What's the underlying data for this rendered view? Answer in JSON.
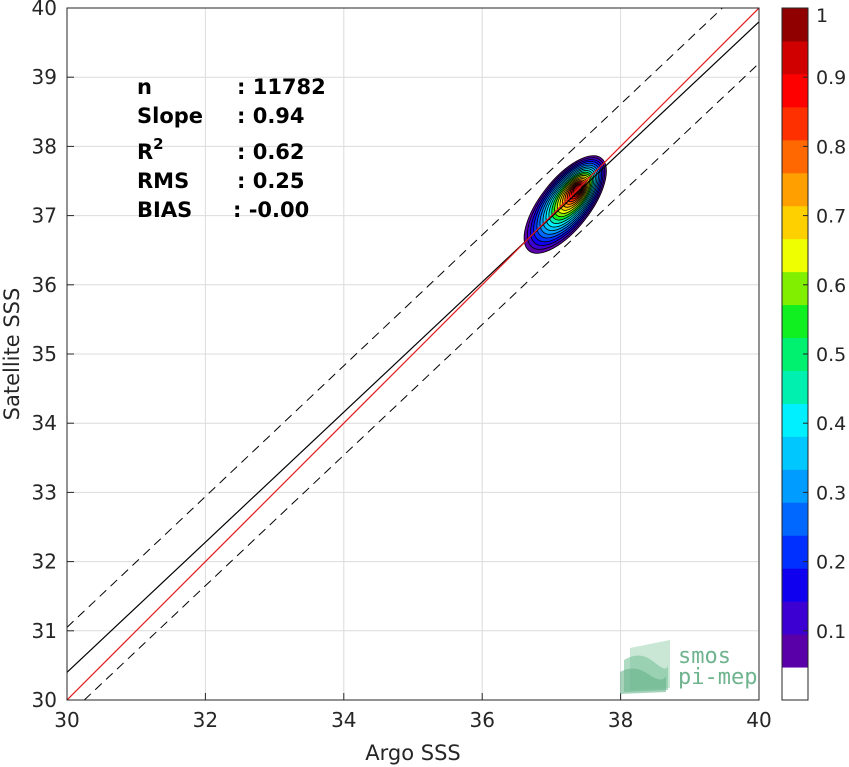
{
  "chart_data": {
    "type": "scatter",
    "subtype": "density-contour",
    "xlabel": "Argo SSS",
    "ylabel": "Satellite SSS",
    "xlim": [
      30,
      40
    ],
    "ylim": [
      30,
      40
    ],
    "xticks": [
      "30",
      "32",
      "34",
      "36",
      "38",
      "40"
    ],
    "yticks": [
      "30",
      "31",
      "32",
      "33",
      "34",
      "35",
      "36",
      "37",
      "38",
      "39",
      "40"
    ],
    "grid": true,
    "stats": [
      {
        "label": "n",
        "value": ": 11782"
      },
      {
        "label": "Slope",
        "value": ": 0.94"
      },
      {
        "label": "R",
        "sup": "2",
        "value": ": 0.62"
      },
      {
        "label": "RMS",
        "value": ": 0.25"
      },
      {
        "label": "BIAS",
        "value": ": -0.00"
      }
    ],
    "lines": {
      "identity": {
        "color": "#e31a1c",
        "slope": 1,
        "intercept": 0
      },
      "fit": {
        "color": "#000000",
        "slope": 0.94,
        "x_at_30": 30,
        "y_at_30": 30.4,
        "y_at_40": 39.8
      },
      "bounds": {
        "color": "#000000",
        "style": "dashed",
        "upper": [
          [
            30,
            31.05
          ],
          [
            40,
            40.5
          ]
        ],
        "lower": [
          [
            30.25,
            30
          ],
          [
            40,
            39.2
          ]
        ]
      }
    },
    "density": {
      "center": [
        37.38,
        37.38
      ],
      "levels": [
        0.05,
        0.1,
        0.15,
        0.2,
        0.25,
        0.3,
        0.35,
        0.4,
        0.45,
        0.5,
        0.55,
        0.6,
        0.65,
        0.7,
        0.75,
        0.8,
        0.85,
        0.9,
        0.95
      ],
      "outer_extent": {
        "x": [
          36.35,
          37.85
        ],
        "y": [
          36.3,
          38.1
        ]
      }
    },
    "colorbar": {
      "min": 0,
      "max": 1,
      "ticks": [
        "0.1",
        "0.2",
        "0.3",
        "0.4",
        "0.5",
        "0.6",
        "0.7",
        "0.8",
        "0.9",
        "1"
      ],
      "tick_values": [
        0.1,
        0.2,
        0.3,
        0.4,
        0.5,
        0.6,
        0.7,
        0.8,
        0.9,
        1.0
      ],
      "colors": [
        "#ffffff",
        "#5a00a8",
        "#3c00d2",
        "#1000f0",
        "#0030ff",
        "#0068ff",
        "#009cff",
        "#00c8ff",
        "#00f0ff",
        "#00f0b0",
        "#00f070",
        "#10f020",
        "#80f000",
        "#f0ff00",
        "#ffd000",
        "#ffa000",
        "#ff6800",
        "#ff3000",
        "#ff0000",
        "#d00000",
        "#900000"
      ]
    }
  },
  "logo": {
    "line1": "smos",
    "line2": "pi-mep"
  }
}
